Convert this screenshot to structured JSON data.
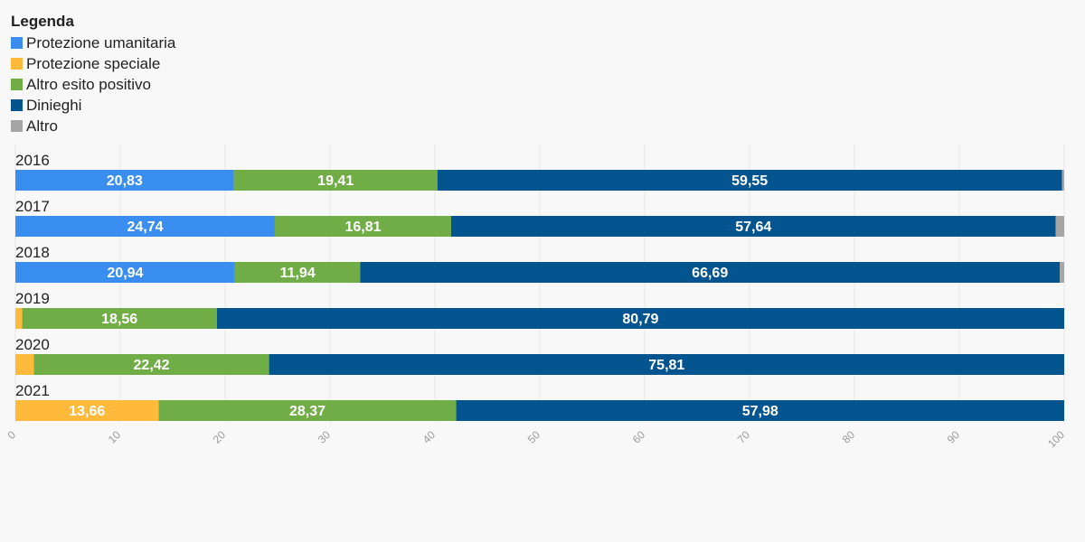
{
  "legend": {
    "title": "Legenda"
  },
  "chart_data": {
    "type": "bar",
    "orientation": "horizontal",
    "stacked": true,
    "title": "",
    "xlabel": "",
    "ylabel": "",
    "xlim": [
      0,
      100
    ],
    "grid": true,
    "legend_position": "top-left",
    "categories": [
      "2016",
      "2017",
      "2018",
      "2019",
      "2020",
      "2021"
    ],
    "series": [
      {
        "name": "Protezione umanitaria",
        "color": "#3a8ef0",
        "values": [
          20.83,
          24.74,
          20.94,
          0,
          0,
          0
        ]
      },
      {
        "name": "Protezione speciale",
        "color": "#ffb93b",
        "values": [
          0,
          0,
          0,
          0.65,
          1.77,
          13.66
        ]
      },
      {
        "name": "Altro esito positivo",
        "color": "#71ad47",
        "values": [
          19.41,
          16.81,
          11.94,
          18.56,
          22.42,
          28.37
        ]
      },
      {
        "name": "Dinieghi",
        "color": "#04558f",
        "values": [
          59.55,
          57.64,
          66.69,
          80.79,
          75.81,
          57.98
        ]
      },
      {
        "name": "Altro",
        "color": "#a6a6a6",
        "values": [
          0.21,
          0.81,
          0.43,
          0,
          0,
          0
        ]
      }
    ],
    "value_labels": [
      [
        "20,83",
        "",
        "19,41",
        "59,55",
        ""
      ],
      [
        "24,74",
        "",
        "16,81",
        "57,64",
        ""
      ],
      [
        "20,94",
        "",
        "11,94",
        "66,69",
        ""
      ],
      [
        "",
        "",
        "18,56",
        "80,79",
        ""
      ],
      [
        "",
        "",
        "22,42",
        "75,81",
        ""
      ],
      [
        "",
        "13,66",
        "28,37",
        "57,98",
        ""
      ]
    ],
    "x_ticks": [
      "0",
      "10",
      "20",
      "30",
      "40",
      "50",
      "60",
      "70",
      "80",
      "90",
      "100"
    ]
  }
}
